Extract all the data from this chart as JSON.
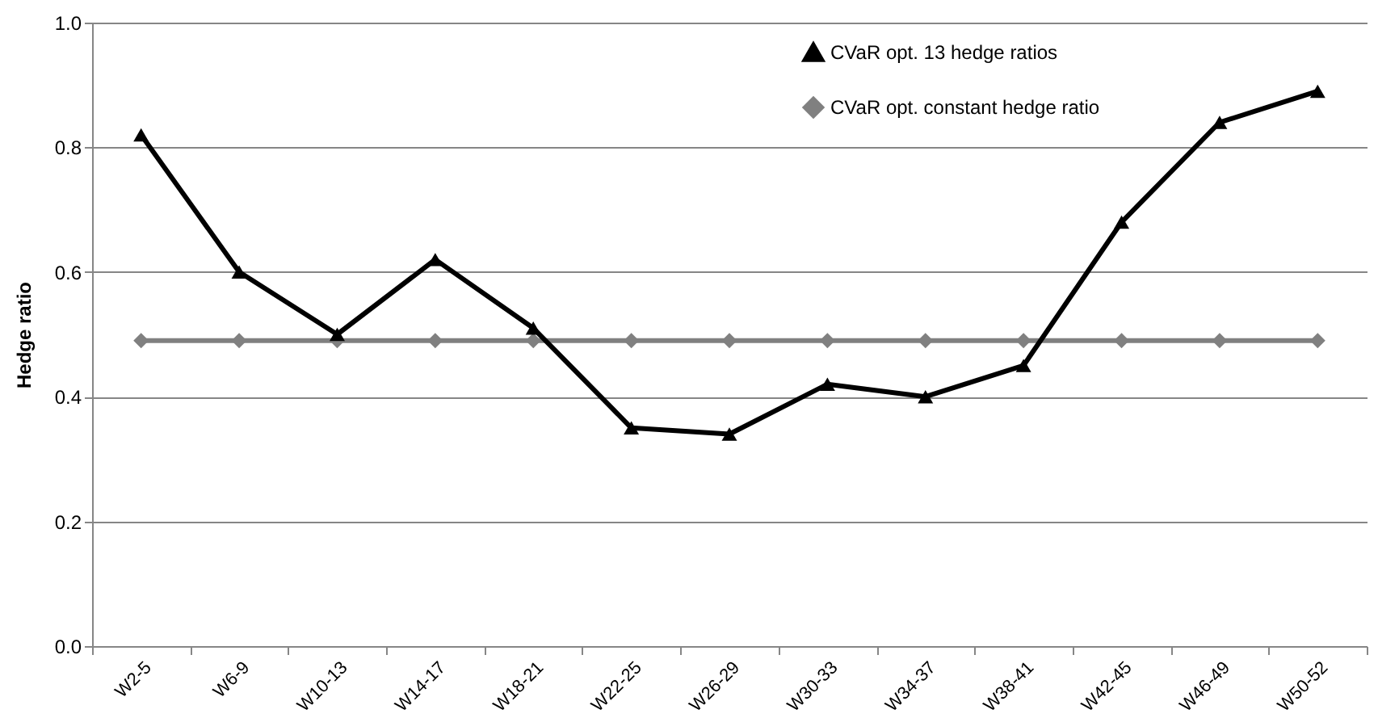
{
  "chart_data": {
    "type": "line",
    "ylabel": "Hedge ratio",
    "categories": [
      "W2-5",
      "W6-9",
      "W10-13",
      "W14-17",
      "W18-21",
      "W22-25",
      "W26-29",
      "W30-33",
      "W34-37",
      "W38-41",
      "W42-45",
      "W46-49",
      "W50-52"
    ],
    "series": [
      {
        "name": "CVaR opt. 13 hedge ratios",
        "color": "#000000",
        "marker": "triangle",
        "values": [
          0.82,
          0.6,
          0.5,
          0.62,
          0.51,
          0.35,
          0.34,
          0.42,
          0.4,
          0.45,
          0.68,
          0.84,
          0.89
        ]
      },
      {
        "name": "CVaR opt. constant hedge ratio",
        "color": "#808080",
        "marker": "diamond",
        "values": [
          0.49,
          0.49,
          0.49,
          0.49,
          0.49,
          0.49,
          0.49,
          0.49,
          0.49,
          0.49,
          0.49,
          0.49,
          0.49
        ]
      }
    ],
    "ylim": [
      0,
      1
    ],
    "yticks": [
      {
        "value": 0,
        "label": "0.0"
      },
      {
        "value": 0.2,
        "label": "0.2"
      },
      {
        "value": 0.4,
        "label": "0.4"
      },
      {
        "value": 0.6,
        "label": "0.6"
      },
      {
        "value": 0.8,
        "label": "0.8"
      },
      {
        "value": 1,
        "label": "1.0"
      }
    ],
    "grid": "y",
    "legend": "top right",
    "line_style": "solid"
  }
}
